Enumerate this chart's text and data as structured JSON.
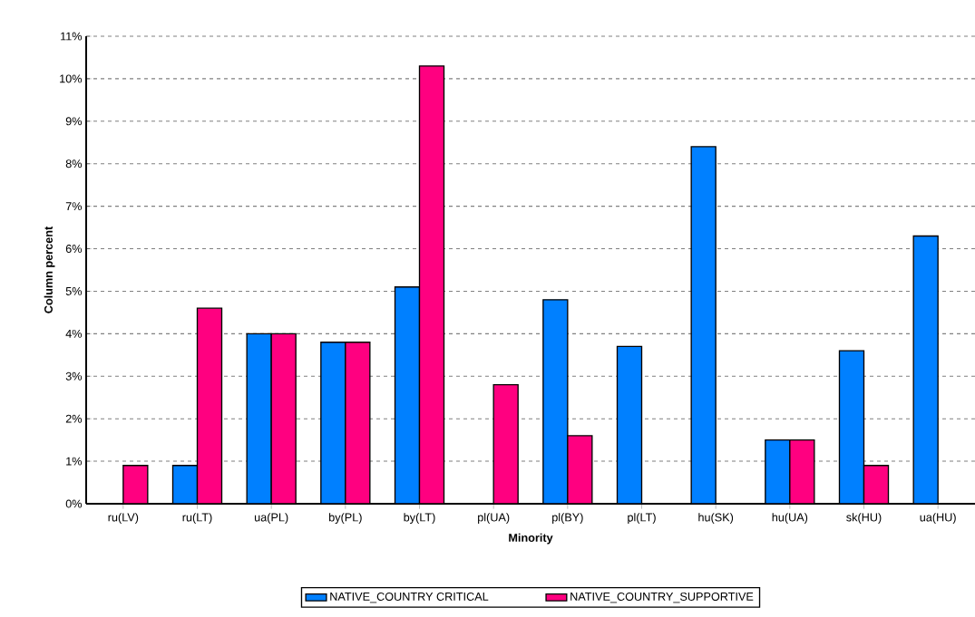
{
  "chart_data": {
    "type": "bar",
    "xlabel": "Minority",
    "ylabel": "Column percent",
    "categories": [
      "ru(LV)",
      "ru(LT)",
      "ua(PL)",
      "by(PL)",
      "by(LT)",
      "pl(UA)",
      "pl(BY)",
      "pl(LT)",
      "hu(SK)",
      "hu(UA)",
      "sk(HU)",
      "ua(HU)"
    ],
    "series": [
      {
        "name": "NATIVE_COUNTRY CRITICAL",
        "color": "#0080ff",
        "values": [
          null,
          0.9,
          4.0,
          3.8,
          5.1,
          null,
          4.8,
          3.7,
          8.4,
          1.5,
          3.6,
          6.3
        ]
      },
      {
        "name": "NATIVE_COUNTRY_SUPPORTIVE",
        "color": "#ff0080",
        "values": [
          0.9,
          4.6,
          4.0,
          3.8,
          10.3,
          2.8,
          1.6,
          null,
          null,
          1.5,
          0.9,
          null
        ]
      }
    ],
    "ylim": [
      0,
      11
    ],
    "yticks": [
      {
        "value": 0,
        "label": "0%"
      },
      {
        "value": 1,
        "label": "1%"
      },
      {
        "value": 2,
        "label": "2%"
      },
      {
        "value": 3,
        "label": "3%"
      },
      {
        "value": 4,
        "label": "4%"
      },
      {
        "value": 5,
        "label": "5%"
      },
      {
        "value": 6,
        "label": "6%"
      },
      {
        "value": 7,
        "label": "7%"
      },
      {
        "value": 8,
        "label": "8%"
      },
      {
        "value": 9,
        "label": "9%"
      },
      {
        "value": 10,
        "label": "10%"
      },
      {
        "value": 11,
        "label": "11%"
      }
    ],
    "grid": "y",
    "legend": "bottom"
  }
}
